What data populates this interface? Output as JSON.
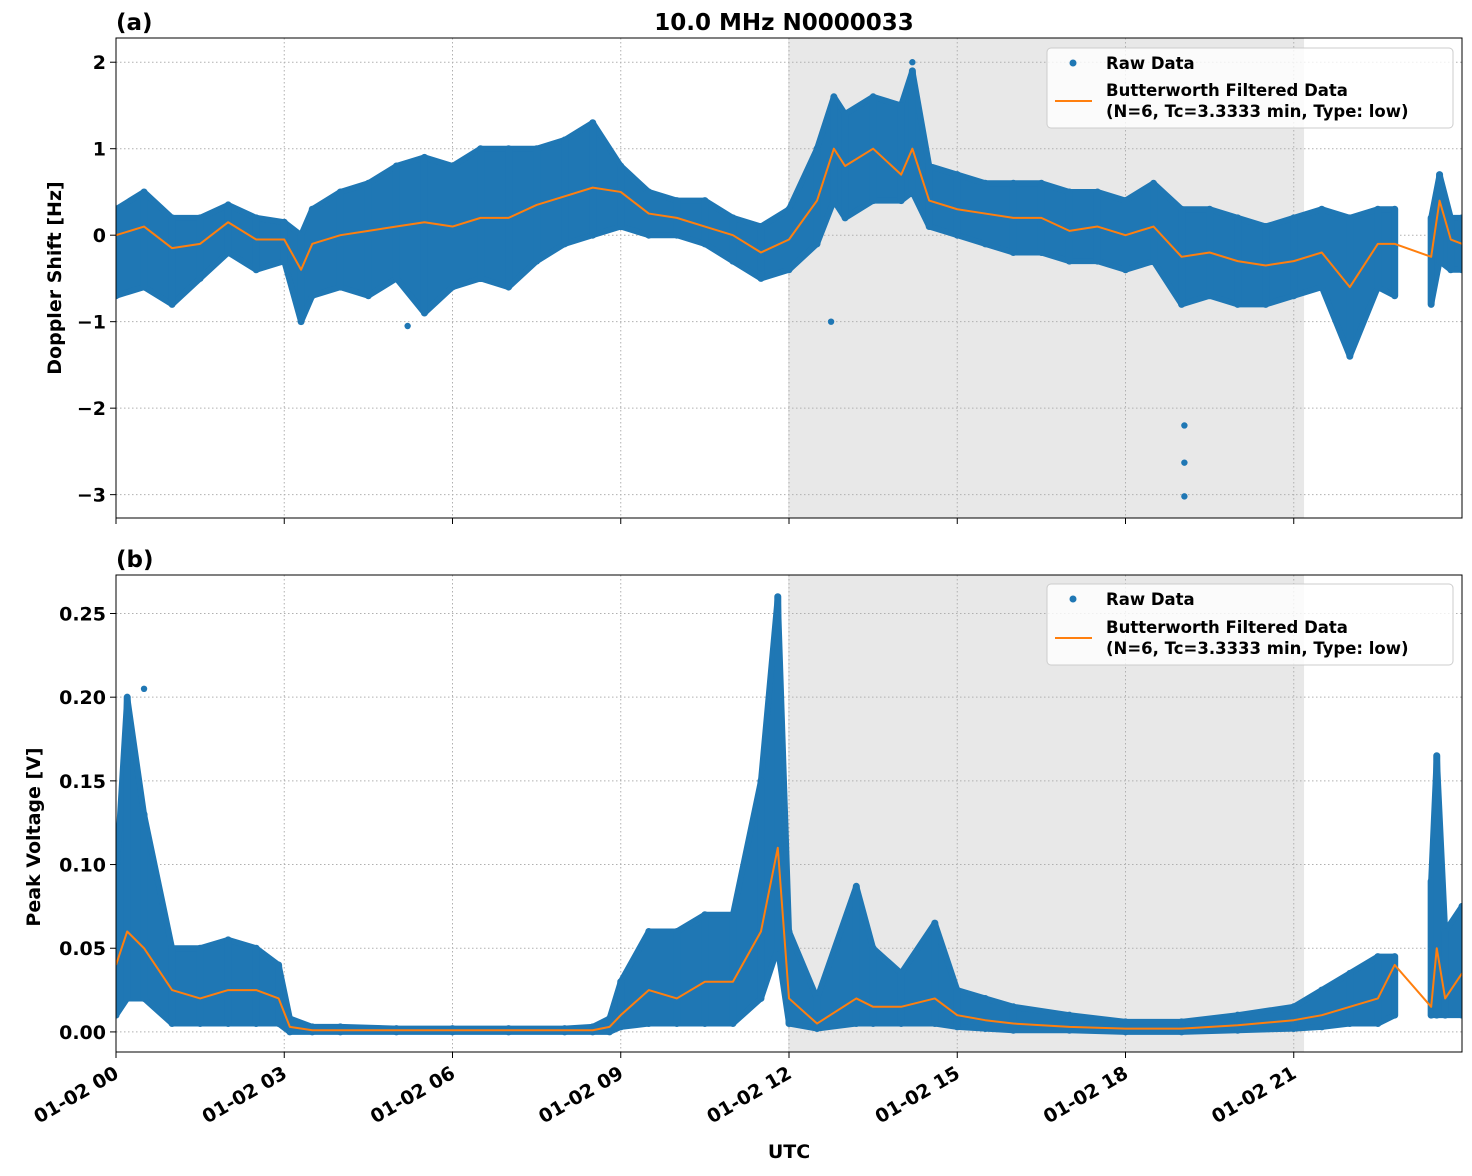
{
  "chart_data": [
    {
      "type": "scatter+line",
      "panel_label": "(a)",
      "title": "10.0 MHz N0000033",
      "xlabel": "",
      "ylabel": "Doppler Shift [Hz]",
      "xlim": [
        "00:00",
        "24:00"
      ],
      "ylim": [
        -3.27,
        2.28
      ],
      "grid": true,
      "x_ticks": [
        "00:00",
        "03:00",
        "06:00",
        "09:00",
        "12:00",
        "15:00",
        "18:00",
        "21:00"
      ],
      "x_tick_labels": [
        "01-02 00",
        "01-02 03",
        "01-02 06",
        "01-02 09",
        "01-02 12",
        "01-02 15",
        "01-02 18",
        "01-02 21"
      ],
      "y_ticks": [
        2,
        1,
        0,
        -1,
        -2,
        -3
      ],
      "y_tick_labels": [
        "2",
        "1",
        "0",
        "−1",
        "−2",
        "−3"
      ],
      "shaded_span": [
        "11:59",
        "21:11"
      ],
      "legend": {
        "position": "top-right",
        "raw": "Raw Data",
        "filtered_line1": "Butterworth Filtered Data",
        "filtered_line2": "(N=6, Tc=3.3333 min, Type: low)"
      },
      "colors": {
        "raw": "#1f77b4",
        "filtered": "#ff7f0e",
        "shade": "#e8e8e8"
      },
      "columns": [
        "time_utc",
        "filtered",
        "raw_min",
        "raw_max"
      ],
      "segments": [
        [
          [
            "00:00",
            0.0,
            -0.7,
            0.3
          ],
          [
            "00:30",
            0.1,
            -0.6,
            0.5
          ],
          [
            "01:00",
            -0.15,
            -0.8,
            0.2
          ],
          [
            "01:30",
            -0.1,
            -0.5,
            0.2
          ],
          [
            "02:00",
            0.15,
            -0.2,
            0.35
          ],
          [
            "02:30",
            -0.05,
            -0.4,
            0.2
          ],
          [
            "03:00",
            -0.05,
            -0.3,
            0.15
          ],
          [
            "03:18",
            -0.4,
            -1.0,
            0.0
          ],
          [
            "03:30",
            -0.1,
            -0.7,
            0.3
          ],
          [
            "04:00",
            0.0,
            -0.6,
            0.5
          ],
          [
            "04:30",
            0.05,
            -0.7,
            0.6
          ],
          [
            "05:00",
            0.1,
            -0.5,
            0.8
          ],
          [
            "05:30",
            0.15,
            -0.9,
            0.9
          ],
          [
            "06:00",
            0.1,
            -0.6,
            0.8
          ],
          [
            "06:30",
            0.2,
            -0.5,
            1.0
          ],
          [
            "07:00",
            0.2,
            -0.6,
            1.0
          ],
          [
            "07:30",
            0.35,
            -0.3,
            1.0
          ],
          [
            "08:00",
            0.45,
            -0.1,
            1.1
          ],
          [
            "08:30",
            0.55,
            0.0,
            1.3
          ],
          [
            "09:00",
            0.5,
            0.1,
            0.8
          ],
          [
            "09:30",
            0.25,
            0.0,
            0.5
          ],
          [
            "10:00",
            0.2,
            0.0,
            0.4
          ],
          [
            "10:30",
            0.1,
            -0.1,
            0.4
          ],
          [
            "11:00",
            0.0,
            -0.3,
            0.2
          ],
          [
            "11:30",
            -0.2,
            -0.5,
            0.1
          ],
          [
            "12:00",
            -0.05,
            -0.4,
            0.3
          ],
          [
            "12:30",
            0.4,
            -0.1,
            1.0
          ],
          [
            "12:48",
            1.0,
            0.4,
            1.6
          ],
          [
            "13:00",
            0.8,
            0.2,
            1.4
          ],
          [
            "13:30",
            1.0,
            0.4,
            1.6
          ],
          [
            "14:00",
            0.7,
            0.4,
            1.5
          ],
          [
            "14:12",
            1.0,
            0.5,
            1.9
          ],
          [
            "14:30",
            0.4,
            0.1,
            0.8
          ],
          [
            "15:00",
            0.3,
            0.0,
            0.7
          ],
          [
            "15:30",
            0.25,
            -0.1,
            0.6
          ],
          [
            "16:00",
            0.2,
            -0.2,
            0.6
          ],
          [
            "16:30",
            0.2,
            -0.2,
            0.6
          ],
          [
            "17:00",
            0.05,
            -0.3,
            0.5
          ],
          [
            "17:30",
            0.1,
            -0.3,
            0.5
          ],
          [
            "18:00",
            0.0,
            -0.4,
            0.4
          ],
          [
            "18:30",
            0.1,
            -0.3,
            0.6
          ],
          [
            "19:00",
            -0.25,
            -0.8,
            0.3
          ],
          [
            "19:30",
            -0.2,
            -0.7,
            0.3
          ],
          [
            "20:00",
            -0.3,
            -0.8,
            0.2
          ],
          [
            "20:30",
            -0.35,
            -0.8,
            0.1
          ],
          [
            "21:00",
            -0.3,
            -0.7,
            0.2
          ],
          [
            "21:30",
            -0.2,
            -0.6,
            0.3
          ],
          [
            "22:00",
            -0.6,
            -1.4,
            0.2
          ],
          [
            "22:30",
            -0.1,
            -0.6,
            0.3
          ],
          [
            "22:48",
            -0.1,
            -0.7,
            0.3
          ]
        ],
        [
          [
            "23:27",
            -0.25,
            -0.8,
            0.2
          ],
          [
            "23:36",
            0.4,
            -0.3,
            0.7
          ],
          [
            "23:48",
            -0.05,
            -0.4,
            0.2
          ],
          [
            "24:00",
            -0.1,
            -0.4,
            0.2
          ]
        ]
      ],
      "raw_outliers": [
        [
          "19:03",
          -2.2
        ],
        [
          "19:03",
          -2.63
        ],
        [
          "19:03",
          -3.02
        ],
        [
          "12:45",
          -1.0
        ],
        [
          "14:12",
          2.0
        ],
        [
          "05:12",
          -1.05
        ]
      ]
    },
    {
      "type": "scatter+line",
      "panel_label": "(b)",
      "title": "",
      "xlabel": "UTC",
      "ylabel": "Peak Voltage [V]",
      "xlim": [
        "00:00",
        "24:00"
      ],
      "ylim": [
        -0.012,
        0.273
      ],
      "grid": true,
      "x_ticks": [
        "00:00",
        "03:00",
        "06:00",
        "09:00",
        "12:00",
        "15:00",
        "18:00",
        "21:00"
      ],
      "x_tick_labels": [
        "01-02 00",
        "01-02 03",
        "01-02 06",
        "01-02 09",
        "01-02 12",
        "01-02 15",
        "01-02 18",
        "01-02 21"
      ],
      "y_ticks": [
        0.0,
        0.05,
        0.1,
        0.15,
        0.2,
        0.25
      ],
      "y_tick_labels": [
        "0.00",
        "0.05",
        "0.10",
        "0.15",
        "0.20",
        "0.25"
      ],
      "shaded_span": [
        "11:59",
        "21:11"
      ],
      "legend": {
        "position": "top-right",
        "raw": "Raw Data",
        "filtered_line1": "Butterworth Filtered Data",
        "filtered_line2": "(N=6, Tc=3.3333 min, Type: low)"
      },
      "colors": {
        "raw": "#1f77b4",
        "filtered": "#ff7f0e",
        "shade": "#e8e8e8"
      },
      "columns": [
        "time_utc",
        "filtered",
        "raw_min",
        "raw_max"
      ],
      "segments": [
        [
          [
            "00:00",
            0.04,
            0.01,
            0.09
          ],
          [
            "00:12",
            0.06,
            0.02,
            0.2
          ],
          [
            "00:30",
            0.05,
            0.02,
            0.13
          ],
          [
            "01:00",
            0.025,
            0.005,
            0.05
          ],
          [
            "01:30",
            0.02,
            0.005,
            0.05
          ],
          [
            "02:00",
            0.025,
            0.005,
            0.055
          ],
          [
            "02:30",
            0.025,
            0.005,
            0.05
          ],
          [
            "02:54",
            0.02,
            0.005,
            0.04
          ],
          [
            "03:06",
            0.003,
            0.0,
            0.008
          ],
          [
            "03:30",
            0.001,
            0.0,
            0.003
          ],
          [
            "04:00",
            0.001,
            0.0,
            0.003
          ],
          [
            "05:00",
            0.001,
            0.0,
            0.002
          ],
          [
            "06:00",
            0.001,
            0.0,
            0.002
          ],
          [
            "07:00",
            0.001,
            0.0,
            0.002
          ],
          [
            "08:00",
            0.001,
            0.0,
            0.002
          ],
          [
            "08:30",
            0.001,
            0.0,
            0.003
          ],
          [
            "08:48",
            0.003,
            0.0,
            0.008
          ],
          [
            "09:00",
            0.01,
            0.003,
            0.03
          ],
          [
            "09:30",
            0.025,
            0.005,
            0.06
          ],
          [
            "10:00",
            0.02,
            0.005,
            0.06
          ],
          [
            "10:30",
            0.03,
            0.005,
            0.07
          ],
          [
            "11:00",
            0.03,
            0.005,
            0.07
          ],
          [
            "11:30",
            0.06,
            0.02,
            0.15
          ],
          [
            "11:48",
            0.11,
            0.05,
            0.26
          ],
          [
            "12:00",
            0.02,
            0.005,
            0.06
          ],
          [
            "12:30",
            0.005,
            0.002,
            0.02
          ],
          [
            "13:12",
            0.02,
            0.005,
            0.087
          ],
          [
            "13:30",
            0.015,
            0.005,
            0.05
          ],
          [
            "14:00",
            0.015,
            0.005,
            0.035
          ],
          [
            "14:36",
            0.02,
            0.005,
            0.065
          ],
          [
            "15:00",
            0.01,
            0.003,
            0.025
          ],
          [
            "15:30",
            0.007,
            0.002,
            0.02
          ],
          [
            "16:00",
            0.005,
            0.001,
            0.015
          ],
          [
            "17:00",
            0.003,
            0.001,
            0.01
          ],
          [
            "18:00",
            0.002,
            0.0,
            0.006
          ],
          [
            "19:00",
            0.002,
            0.0,
            0.006
          ],
          [
            "20:00",
            0.004,
            0.001,
            0.01
          ],
          [
            "21:00",
            0.007,
            0.002,
            0.015
          ],
          [
            "21:30",
            0.01,
            0.003,
            0.025
          ],
          [
            "22:00",
            0.015,
            0.005,
            0.035
          ],
          [
            "22:30",
            0.02,
            0.005,
            0.045
          ],
          [
            "22:48",
            0.04,
            0.01,
            0.045
          ]
        ],
        [
          [
            "23:27",
            0.015,
            0.01,
            0.09
          ],
          [
            "23:33",
            0.05,
            0.01,
            0.165
          ],
          [
            "23:42",
            0.02,
            0.01,
            0.06
          ],
          [
            "24:00",
            0.035,
            0.01,
            0.075
          ]
        ]
      ],
      "raw_outliers": [
        [
          "00:30",
          0.205
        ],
        [
          "11:48",
          0.26
        ],
        [
          "13:12",
          0.087
        ],
        [
          "23:33",
          0.165
        ]
      ]
    }
  ]
}
